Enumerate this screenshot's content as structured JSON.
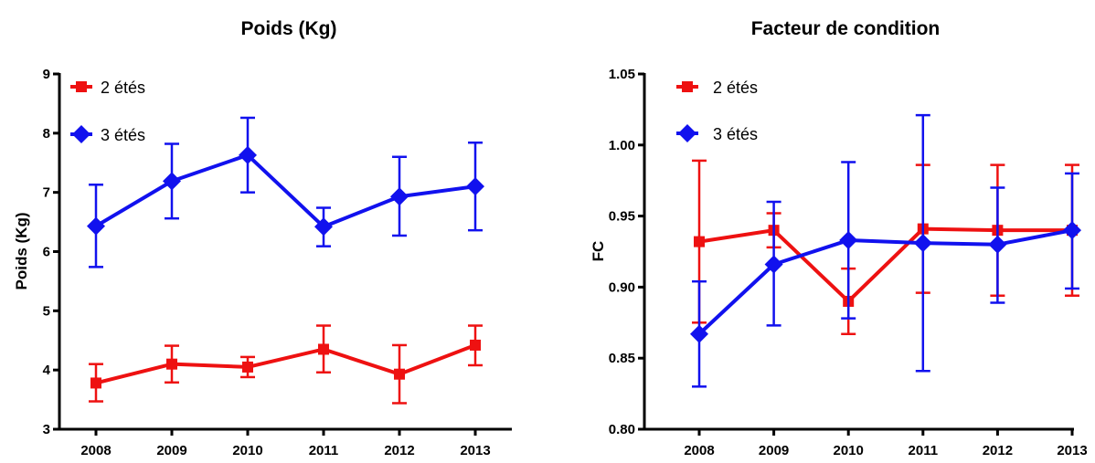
{
  "chart_data": [
    {
      "type": "line",
      "title": "Poids (Kg)",
      "xlabel": "",
      "ylabel": "Poids (Kg)",
      "x": [
        "2008",
        "2009",
        "2010",
        "2011",
        "2012",
        "2013"
      ],
      "ylim": [
        3,
        9
      ],
      "yticks": [
        "3",
        "4",
        "5",
        "6",
        "7",
        "8",
        "9"
      ],
      "legend_position": "top-left",
      "series": [
        {
          "name": "2 étés",
          "color": "#ee1111",
          "marker": "square",
          "values": [
            3.78,
            4.1,
            4.05,
            4.35,
            3.93,
            4.42
          ],
          "err_low": [
            3.47,
            3.79,
            3.88,
            3.96,
            3.44,
            4.08
          ],
          "err_high": [
            4.1,
            4.41,
            4.22,
            4.75,
            4.42,
            4.75
          ]
        },
        {
          "name": "3 étés",
          "color": "#1111ee",
          "marker": "diamond",
          "values": [
            6.43,
            7.19,
            7.63,
            6.42,
            6.93,
            7.1
          ],
          "err_low": [
            5.74,
            6.56,
            7.0,
            6.09,
            6.27,
            6.36
          ],
          "err_high": [
            7.13,
            7.82,
            8.26,
            6.74,
            7.6,
            7.84
          ]
        }
      ]
    },
    {
      "type": "line",
      "title": "Facteur de condition",
      "xlabel": "",
      "ylabel": "FC",
      "x": [
        "2008",
        "2009",
        "2010",
        "2011",
        "2012",
        "2013"
      ],
      "ylim": [
        0.8,
        1.05
      ],
      "yticks": [
        "0.80",
        "0.85",
        "0.90",
        "0.95",
        "1.00",
        "1.05"
      ],
      "legend_position": "top-left",
      "series": [
        {
          "name": "2 étés",
          "color": "#ee1111",
          "marker": "square",
          "values": [
            0.932,
            0.94,
            0.89,
            0.941,
            0.94,
            0.94
          ],
          "err_low": [
            0.875,
            0.928,
            0.867,
            0.896,
            0.894,
            0.894
          ],
          "err_high": [
            0.989,
            0.952,
            0.913,
            0.986,
            0.986,
            0.986
          ]
        },
        {
          "name": "3 étés",
          "color": "#1111ee",
          "marker": "diamond",
          "values": [
            0.867,
            0.916,
            0.933,
            0.931,
            0.93,
            0.94
          ],
          "err_low": [
            0.83,
            0.873,
            0.878,
            0.841,
            0.889,
            0.899
          ],
          "err_high": [
            0.904,
            0.96,
            0.988,
            1.021,
            0.97,
            0.98
          ]
        }
      ]
    }
  ]
}
